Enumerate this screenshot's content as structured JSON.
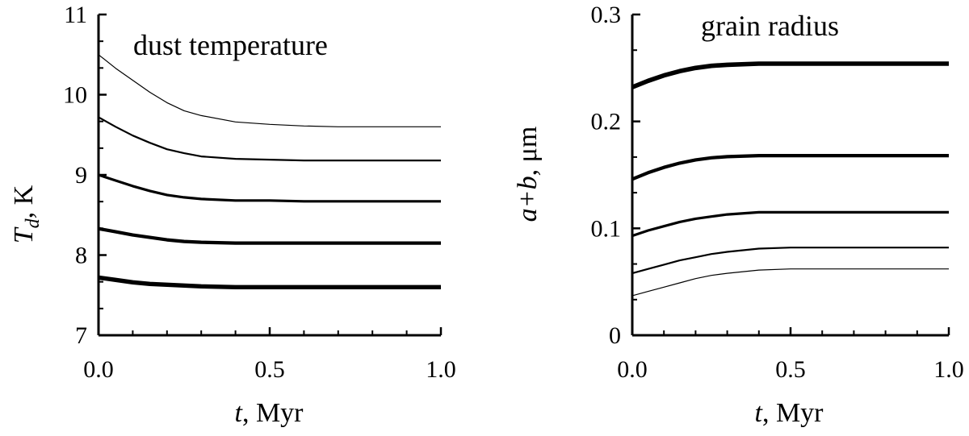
{
  "chart_data": [
    {
      "type": "line",
      "title": "dust temperature",
      "xlabel": "t, Myr",
      "xlabel_var": "t",
      "xlabel_unit": ", Myr",
      "ylabel": "Td, K",
      "ylabel_var": "T",
      "ylabel_sub": "d",
      "ylabel_unit": ", K",
      "xlim": [
        0,
        1
      ],
      "ylim": [
        7,
        11
      ],
      "xticks": [
        "0.0",
        "0.5",
        "1.0"
      ],
      "yticks": [
        "7",
        "8",
        "9",
        "10",
        "11"
      ],
      "grid": false,
      "series": [
        {
          "x": [
            0,
            0.05,
            0.1,
            0.15,
            0.2,
            0.25,
            0.3,
            0.4,
            0.5,
            0.6,
            0.7,
            0.8,
            1.0
          ],
          "values": [
            10.5,
            10.33,
            10.18,
            10.03,
            9.9,
            9.8,
            9.74,
            9.66,
            9.63,
            9.61,
            9.6,
            9.6,
            9.6
          ]
        },
        {
          "x": [
            0,
            0.05,
            0.1,
            0.15,
            0.2,
            0.25,
            0.3,
            0.4,
            0.5,
            0.6,
            0.7,
            0.8,
            1.0
          ],
          "values": [
            9.72,
            9.6,
            9.49,
            9.4,
            9.32,
            9.27,
            9.23,
            9.2,
            9.19,
            9.18,
            9.18,
            9.18,
            9.18
          ]
        },
        {
          "x": [
            0,
            0.05,
            0.1,
            0.15,
            0.2,
            0.25,
            0.3,
            0.4,
            0.5,
            0.6,
            0.7,
            0.8,
            1.0
          ],
          "values": [
            9.0,
            8.93,
            8.86,
            8.8,
            8.75,
            8.72,
            8.7,
            8.68,
            8.68,
            8.67,
            8.67,
            8.67,
            8.67
          ]
        },
        {
          "x": [
            0,
            0.05,
            0.1,
            0.15,
            0.2,
            0.25,
            0.3,
            0.4,
            0.5,
            0.6,
            0.7,
            0.8,
            1.0
          ],
          "values": [
            8.33,
            8.29,
            8.25,
            8.22,
            8.19,
            8.17,
            8.16,
            8.15,
            8.15,
            8.15,
            8.15,
            8.15,
            8.15
          ]
        },
        {
          "x": [
            0,
            0.05,
            0.1,
            0.15,
            0.2,
            0.25,
            0.3,
            0.4,
            0.5,
            0.6,
            0.7,
            0.8,
            1.0
          ],
          "values": [
            7.72,
            7.69,
            7.66,
            7.64,
            7.63,
            7.62,
            7.61,
            7.6,
            7.6,
            7.6,
            7.6,
            7.6,
            7.6
          ]
        }
      ]
    },
    {
      "type": "line",
      "title": "grain radius",
      "xlabel": "t, Myr",
      "xlabel_var": "t",
      "xlabel_unit": ", Myr",
      "ylabel": "a+b, μm",
      "ylabel_var": "a+b",
      "ylabel_unit": ", μm",
      "xlim": [
        0,
        1
      ],
      "ylim": [
        0,
        0.3
      ],
      "xticks": [
        "0.0",
        "0.5",
        "1.0"
      ],
      "yticks": [
        "0",
        "0.1",
        "0.2",
        "0.3"
      ],
      "grid": false,
      "series": [
        {
          "x": [
            0,
            0.05,
            0.1,
            0.15,
            0.2,
            0.25,
            0.3,
            0.4,
            0.5,
            0.6,
            0.7,
            0.8,
            1.0
          ],
          "values": [
            0.037,
            0.041,
            0.045,
            0.049,
            0.053,
            0.056,
            0.058,
            0.061,
            0.062,
            0.062,
            0.062,
            0.062,
            0.062
          ]
        },
        {
          "x": [
            0,
            0.05,
            0.1,
            0.15,
            0.2,
            0.25,
            0.3,
            0.4,
            0.5,
            0.6,
            0.7,
            0.8,
            1.0
          ],
          "values": [
            0.058,
            0.062,
            0.066,
            0.07,
            0.073,
            0.076,
            0.078,
            0.081,
            0.082,
            0.082,
            0.082,
            0.082,
            0.082
          ]
        },
        {
          "x": [
            0,
            0.05,
            0.1,
            0.15,
            0.2,
            0.25,
            0.3,
            0.4,
            0.5,
            0.6,
            0.7,
            0.8,
            1.0
          ],
          "values": [
            0.093,
            0.098,
            0.102,
            0.106,
            0.109,
            0.111,
            0.113,
            0.115,
            0.115,
            0.115,
            0.115,
            0.115,
            0.115
          ]
        },
        {
          "x": [
            0,
            0.05,
            0.1,
            0.15,
            0.2,
            0.25,
            0.3,
            0.4,
            0.5,
            0.6,
            0.7,
            0.8,
            1.0
          ],
          "values": [
            0.146,
            0.152,
            0.157,
            0.161,
            0.164,
            0.166,
            0.167,
            0.168,
            0.168,
            0.168,
            0.168,
            0.168,
            0.168
          ]
        },
        {
          "x": [
            0,
            0.05,
            0.1,
            0.15,
            0.2,
            0.25,
            0.3,
            0.4,
            0.5,
            0.6,
            0.7,
            0.8,
            1.0
          ],
          "values": [
            0.232,
            0.238,
            0.243,
            0.247,
            0.25,
            0.252,
            0.253,
            0.254,
            0.254,
            0.254,
            0.254,
            0.254,
            0.254
          ]
        }
      ]
    }
  ]
}
